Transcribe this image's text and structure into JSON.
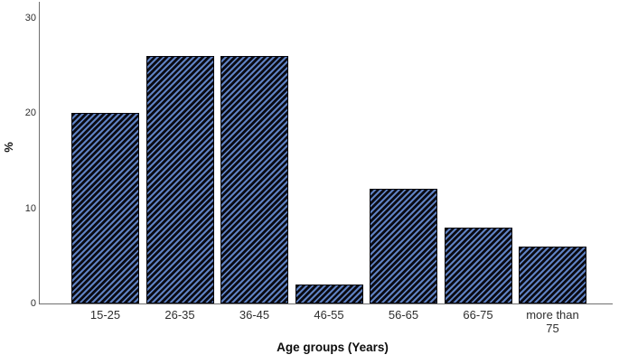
{
  "figure": {
    "background": "#ffffff",
    "axis_line_color": "#6f6f6f",
    "tick_label_color": "#2e2e2e",
    "axis_title_color": "#0d0d0d",
    "bar_style": {
      "stripe_dark": "#0a0a12",
      "stripe_blue": "#5f82c3",
      "border_color": "#05050c",
      "hatch": "diagonal-forward"
    }
  },
  "chart_data": {
    "type": "bar",
    "title": "",
    "categories": [
      "15-25",
      "26-35",
      "36-45",
      "46-55",
      "56-65",
      "66-75",
      "more than 75"
    ],
    "values": [
      20,
      26,
      26,
      2,
      12,
      8,
      6
    ],
    "xlabel": "Age groups (Years)",
    "ylabel": "%",
    "ylim": [
      0,
      30
    ],
    "yticks": [
      0,
      10,
      20,
      30
    ],
    "grid": false,
    "legend": false
  }
}
